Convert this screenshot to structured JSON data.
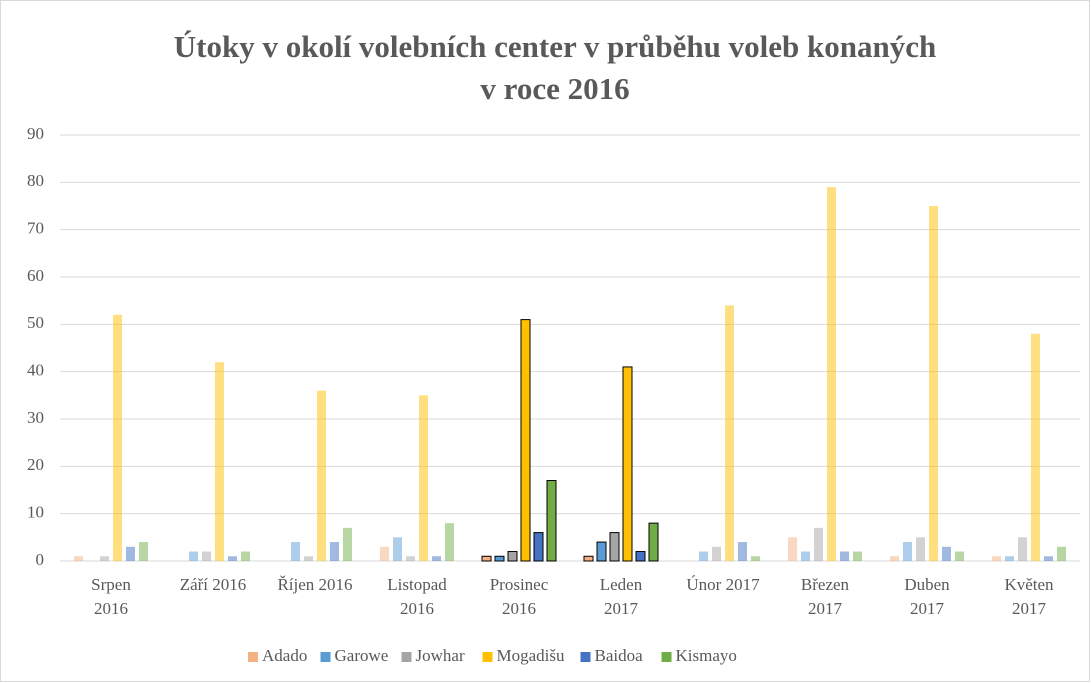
{
  "chart_data": {
    "type": "bar",
    "title": "Útoky v okolí volebních center v průběhu voleb konaných\nv roce 2016",
    "categories": [
      "Srpen\n2016",
      "Září 2016",
      "Říjen 2016",
      "Listopad\n2016",
      "Prosinec\n2016",
      "Leden\n2017",
      "Únor 2017",
      "Březen\n2017",
      "Duben\n2017",
      "Květen\n2017"
    ],
    "series": [
      {
        "name": "Adado",
        "color": "#f4b183",
        "values": [
          1,
          0,
          0,
          3,
          1,
          1,
          0,
          5,
          1,
          1
        ]
      },
      {
        "name": "Garowe",
        "color": "#5b9bd5",
        "values": [
          0,
          2,
          4,
          5,
          1,
          4,
          2,
          2,
          4,
          1
        ]
      },
      {
        "name": "Jowhar",
        "color": "#a5a5a5",
        "values": [
          1,
          2,
          1,
          1,
          2,
          6,
          3,
          7,
          5,
          5
        ]
      },
      {
        "name": "Mogadišu",
        "color": "#ffc000",
        "values": [
          52,
          42,
          36,
          35,
          51,
          41,
          54,
          79,
          75,
          48
        ]
      },
      {
        "name": "Baidoa",
        "color": "#4472c4",
        "values": [
          3,
          1,
          4,
          1,
          6,
          2,
          4,
          2,
          3,
          1
        ]
      },
      {
        "name": "Kismayo",
        "color": "#70ad47",
        "values": [
          4,
          2,
          7,
          8,
          17,
          8,
          1,
          2,
          2,
          3
        ]
      }
    ],
    "highlight": [
      4,
      5
    ],
    "ylim": [
      0,
      90
    ],
    "yticks": [
      0,
      10,
      20,
      30,
      40,
      50,
      60,
      70,
      80,
      90
    ],
    "grid": true,
    "legend": "bottom"
  }
}
